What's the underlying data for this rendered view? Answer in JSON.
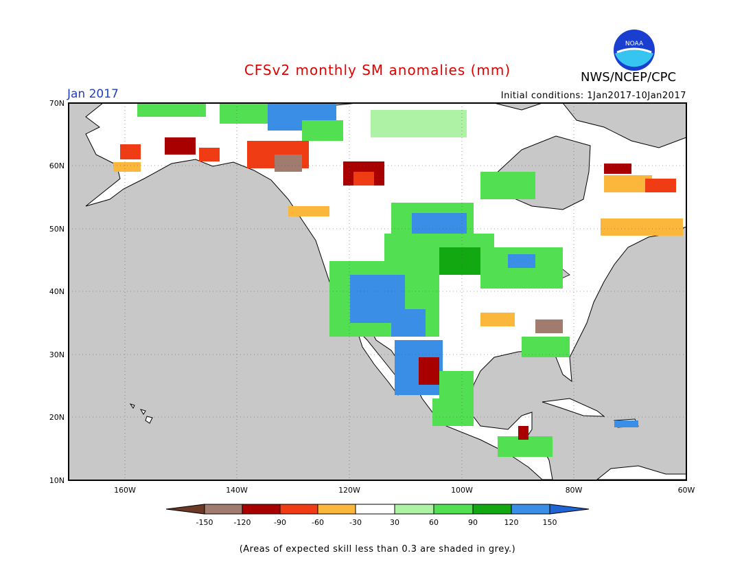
{
  "header": {
    "title": "CFSv2 monthly SM anomalies (mm)",
    "agency": "NWS/NCEP/CPC",
    "month": "Jan 2017",
    "initial_conditions": "Initial conditions: 1Jan2017-10Jan2017",
    "logo_text": "NOAA"
  },
  "map": {
    "lon_range": [
      -170,
      -60
    ],
    "lat_range": [
      10,
      70
    ],
    "lon_ticks": [
      "160W",
      "140W",
      "120W",
      "100W",
      "80W",
      "60W"
    ],
    "lat_ticks": [
      "70N",
      "60N",
      "50N",
      "40N",
      "30N",
      "20N",
      "10N"
    ],
    "colors": {
      "ocean": "#c8c8c8",
      "land": "#ffffff",
      "frame": "#000000"
    }
  },
  "legend": {
    "labels": [
      "-150",
      "-120",
      "-90",
      "-60",
      "-30",
      "30",
      "60",
      "90",
      "120",
      "150"
    ],
    "colors": [
      "#6b3a26",
      "#a07b6e",
      "#a80000",
      "#f03c14",
      "#fbb73c",
      "#ffffff",
      "#aef2a5",
      "#52e052",
      "#12a812",
      "#3a8ee6",
      "#1e64d2"
    ]
  },
  "footer": {
    "note": "(Areas of expected skill less than 0.3 are shaded in grey.)"
  }
}
